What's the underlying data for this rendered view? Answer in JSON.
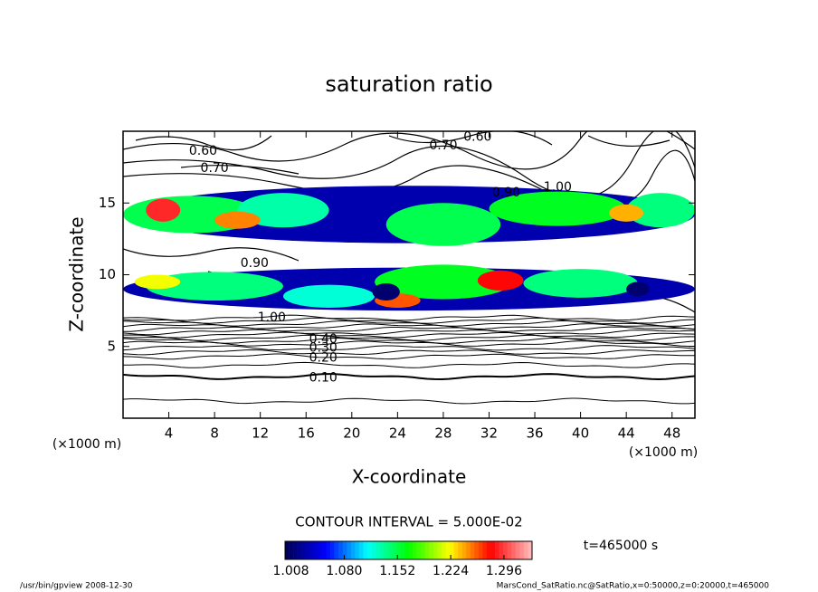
{
  "chart_data": {
    "type": "contour",
    "title": "saturation ratio",
    "xlabel": "X-coordinate",
    "ylabel": "Z-coordinate",
    "xunit": "(×1000 m)",
    "xlim": [
      0,
      50
    ],
    "ylim": [
      0,
      20
    ],
    "xticks": [
      4,
      8,
      12,
      16,
      20,
      24,
      28,
      32,
      36,
      40,
      44,
      48
    ],
    "yticks": [
      5,
      10,
      15
    ],
    "contour_interval": "CONTOUR INTERVAL = 5.000E-02",
    "time_label": "t=465000 s",
    "footer_left": "/usr/bin/gpview  2008-12-30",
    "footer_right": "MarsCond_SatRatio.nc@SatRatio,x=0:50000,z=0:20000,t=465000",
    "contour_lines": {
      "z": [
        1.2,
        2.9,
        3.7,
        4.3,
        4.6,
        4.9,
        5.2,
        5.4,
        5.6,
        5.8,
        6.0,
        6.2,
        6.4,
        6.6,
        6.8,
        7.0
      ]
    },
    "contour_labels": [
      {
        "label": "0.10",
        "x": 17.5,
        "z": 2.8
      },
      {
        "label": "0.20",
        "x": 17.5,
        "z": 4.2
      },
      {
        "label": "0.30",
        "x": 17.5,
        "z": 4.9
      },
      {
        "label": "0.40",
        "x": 17.5,
        "z": 5.5
      },
      {
        "label": "1.00",
        "x": 13,
        "z": 7.0
      },
      {
        "label": "0.90",
        "x": 11.5,
        "z": 10.8
      },
      {
        "label": "0.70",
        "x": 8,
        "z": 17.4
      },
      {
        "label": "0.60",
        "x": 7,
        "z": 18.6
      },
      {
        "label": "0.70",
        "x": 28,
        "z": 19.0
      },
      {
        "label": "0.60",
        "x": 31,
        "z": 19.6
      },
      {
        "label": "0.90",
        "x": 33.5,
        "z": 15.7
      },
      {
        "label": "1.00",
        "x": 38,
        "z": 16.1
      }
    ],
    "shaded": [
      {
        "x": 25,
        "z": 14.2,
        "rx": 25,
        "rz": 2.0,
        "value": 1.03
      },
      {
        "x": 25,
        "z": 9.0,
        "rx": 25,
        "rz": 1.5,
        "value": 1.03
      },
      {
        "x": 6,
        "z": 14.2,
        "rx": 6,
        "rz": 1.3,
        "value": 1.15
      },
      {
        "x": 14,
        "z": 14.5,
        "rx": 4,
        "rz": 1.2,
        "value": 1.13
      },
      {
        "x": 28,
        "z": 13.5,
        "rx": 5,
        "rz": 1.5,
        "value": 1.15
      },
      {
        "x": 38,
        "z": 14.6,
        "rx": 6,
        "rz": 1.2,
        "value": 1.16
      },
      {
        "x": 47,
        "z": 14.5,
        "rx": 3,
        "rz": 1.2,
        "value": 1.14
      },
      {
        "x": 8,
        "z": 9.2,
        "rx": 6,
        "rz": 1.0,
        "value": 1.14
      },
      {
        "x": 28,
        "z": 9.5,
        "rx": 6,
        "rz": 1.2,
        "value": 1.16
      },
      {
        "x": 40,
        "z": 9.4,
        "rx": 5,
        "rz": 1.0,
        "value": 1.14
      },
      {
        "x": 18,
        "z": 8.5,
        "rx": 4,
        "rz": 0.8,
        "value": 1.12
      },
      {
        "x": 3.5,
        "z": 14.5,
        "rx": 1.5,
        "rz": 0.8,
        "value": 1.29
      },
      {
        "x": 10,
        "z": 13.8,
        "rx": 2,
        "rz": 0.6,
        "value": 1.25
      },
      {
        "x": 33,
        "z": 9.6,
        "rx": 2,
        "rz": 0.7,
        "value": 1.28
      },
      {
        "x": 24,
        "z": 8.2,
        "rx": 2,
        "rz": 0.5,
        "value": 1.26
      },
      {
        "x": 3,
        "z": 9.5,
        "rx": 2,
        "rz": 0.5,
        "value": 1.22
      },
      {
        "x": 44,
        "z": 14.3,
        "rx": 1.5,
        "rz": 0.6,
        "value": 1.24
      },
      {
        "x": 23,
        "z": 8.8,
        "rx": 1.2,
        "rz": 0.6,
        "value": 1.01
      },
      {
        "x": 45,
        "z": 9.0,
        "rx": 1,
        "rz": 0.5,
        "value": 1.01
      }
    ],
    "colormap": [
      "#000050",
      "#0000ff",
      "#00ffff",
      "#00ff00",
      "#ffff00",
      "#ff0000",
      "#ffc0c0"
    ],
    "clim": [
      1.0,
      1.334
    ],
    "colorbar_ticks": [
      1.008,
      {
        "value": 1.08,
        "label": "1.080"
      },
      1.152,
      1.224,
      1.296
    ]
  }
}
